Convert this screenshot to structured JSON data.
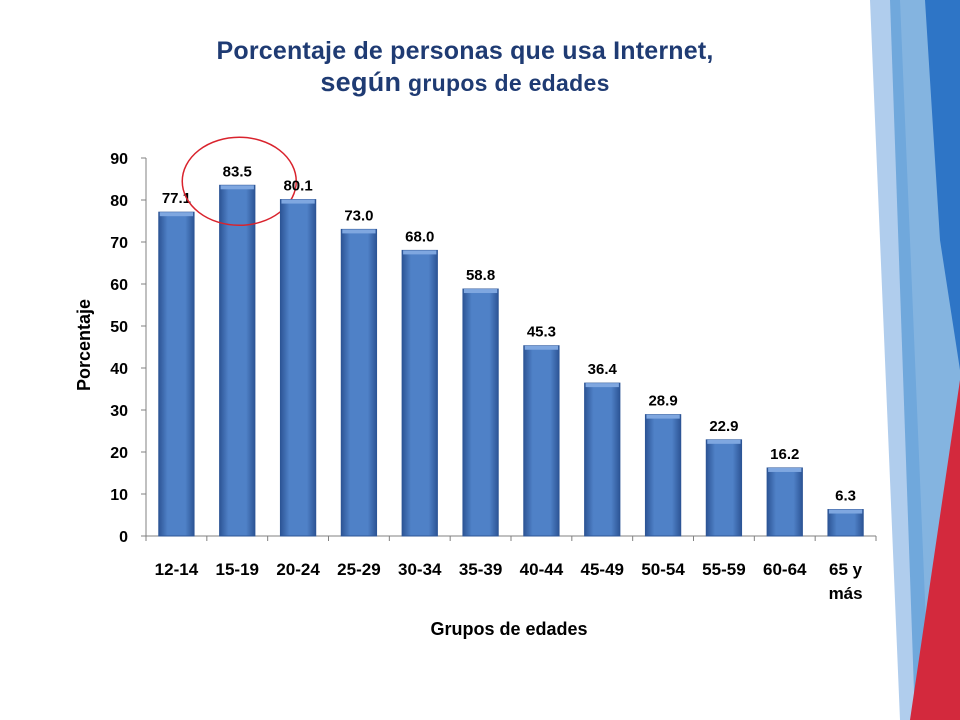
{
  "title": {
    "line1": "Porcentaje de personas que usa Internet,",
    "line2_emphasis": "según",
    "line2_rest": " grupos de edades"
  },
  "colors": {
    "title": "#1F3B73",
    "bar": "#4F81C7",
    "bar_top": "#7FA7E0",
    "bar_edge": "#2D5596",
    "axis_text": "#000000",
    "highlight_circle": "#D9232D",
    "deco_blue_light": "#9CC1E8",
    "deco_blue_mid": "#5B9BD5",
    "deco_blue_dark": "#2E75C6",
    "deco_red": "#D3293D"
  },
  "chart_data": {
    "type": "bar",
    "categories": [
      "12-14",
      "15-19",
      "20-24",
      "25-29",
      "30-34",
      "35-39",
      "40-44",
      "45-49",
      "50-54",
      "55-59",
      "60-64",
      "65 y más"
    ],
    "category_lines": [
      [
        "12-14"
      ],
      [
        "15-19"
      ],
      [
        "20-24"
      ],
      [
        "25-29"
      ],
      [
        "30-34"
      ],
      [
        "35-39"
      ],
      [
        "40-44"
      ],
      [
        "45-49"
      ],
      [
        "50-54"
      ],
      [
        "55-59"
      ],
      [
        "60-64"
      ],
      [
        "65 y",
        "más"
      ]
    ],
    "values": [
      77.1,
      83.5,
      80.1,
      73.0,
      68.0,
      58.8,
      45.3,
      36.4,
      28.9,
      22.9,
      16.2,
      6.3
    ],
    "value_labels": [
      "77.1",
      "83.5",
      "80.1",
      "73.0",
      "68.0",
      "58.8",
      "45.3",
      "36.4",
      "28.9",
      "22.9",
      "16.2",
      "6.3"
    ],
    "xlabel": "Grupos de edades",
    "ylabel": "Porcentaje",
    "ylim": [
      0,
      90
    ],
    "yticks": [
      0,
      10,
      20,
      30,
      40,
      50,
      60,
      70,
      80,
      90
    ],
    "grid": false,
    "legend": "none",
    "highlighted_category": "15-19"
  }
}
